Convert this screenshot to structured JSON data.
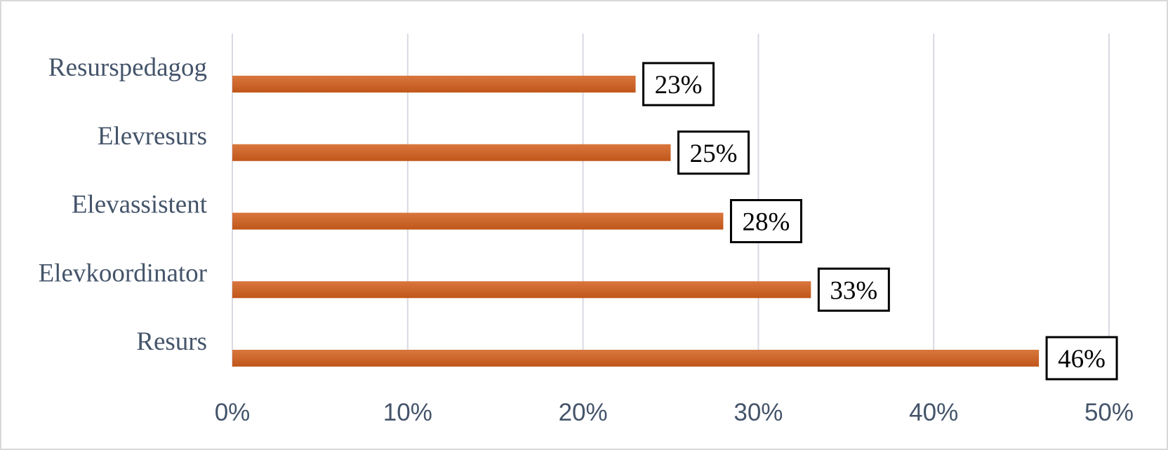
{
  "chart_data": {
    "type": "bar",
    "orientation": "horizontal",
    "categories": [
      "Resurspedagog",
      "Elevresurs",
      "Elevassistent",
      "Elevkoordinator",
      "Resurs"
    ],
    "values": [
      23,
      25,
      28,
      33,
      46
    ],
    "value_labels": [
      "23%",
      "25%",
      "28%",
      "33%",
      "46%"
    ],
    "color": "#c55a11",
    "xlim": [
      0,
      50
    ],
    "xticks": [
      {
        "value": 0,
        "label": "0%"
      },
      {
        "value": 10,
        "label": "10%"
      },
      {
        "value": 20,
        "label": "20%"
      },
      {
        "value": 30,
        "label": "30%"
      },
      {
        "value": 40,
        "label": "40%"
      },
      {
        "value": 50,
        "label": "50%"
      }
    ],
    "grid": true
  }
}
